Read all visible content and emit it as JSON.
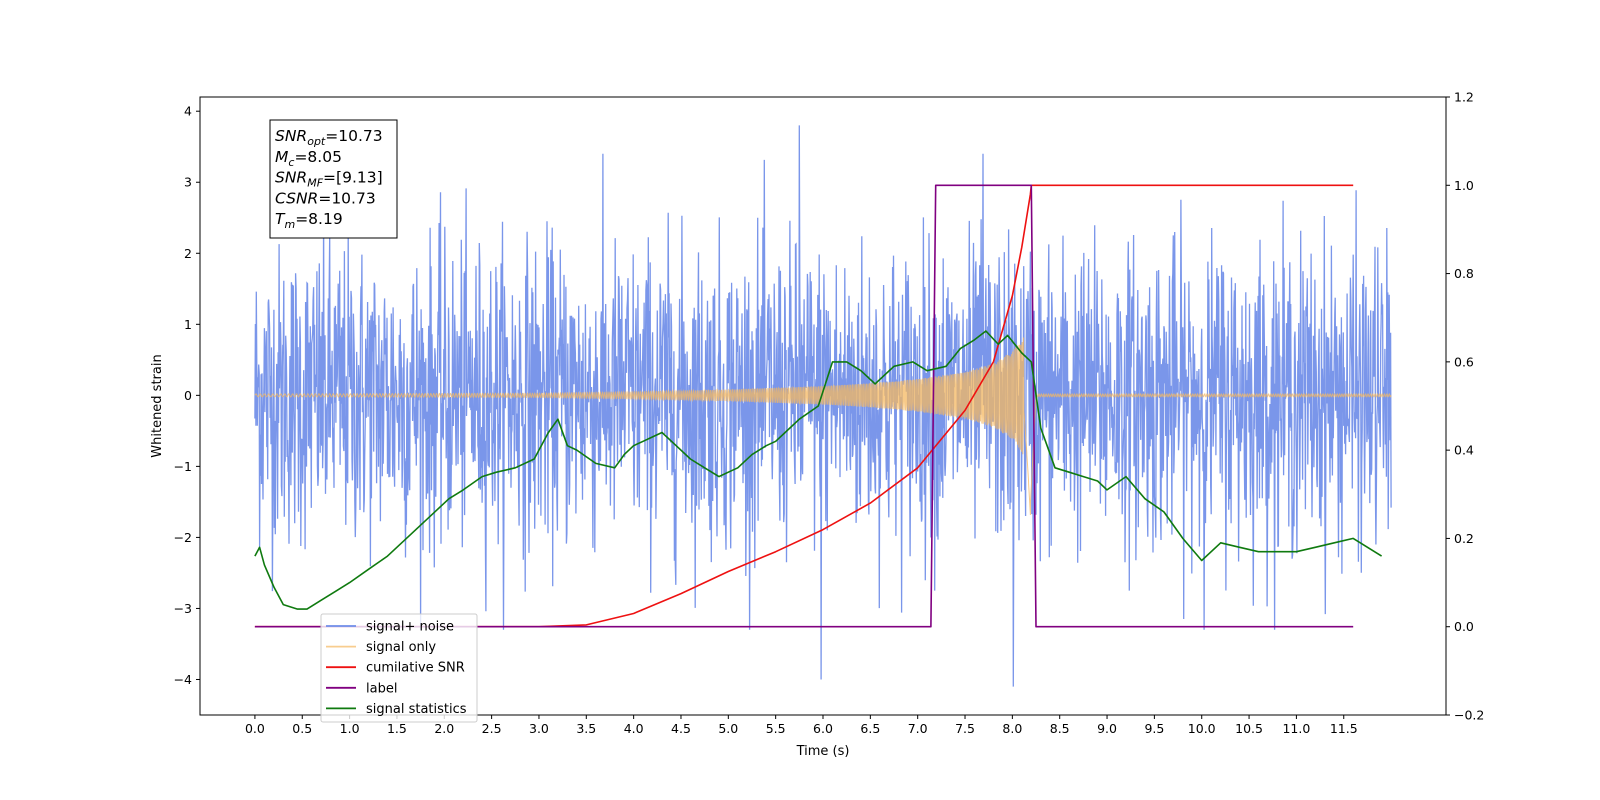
{
  "chart_data": {
    "type": "line",
    "xlabel": "Time (s)",
    "ylabel": "Whitened strain",
    "xlim": [
      -0.58,
      12.58
    ],
    "ylim": [
      -4.5,
      4.2
    ],
    "y2lim": [
      -0.2,
      1.2
    ],
    "xticks": [
      "0.0",
      "0.5",
      "1.0",
      "1.5",
      "2.0",
      "2.5",
      "3.0",
      "3.5",
      "4.0",
      "4.5",
      "5.0",
      "5.5",
      "6.0",
      "6.5",
      "7.0",
      "7.5",
      "8.0",
      "8.5",
      "9.0",
      "9.5",
      "10.0",
      "10.5",
      "11.0",
      "11.5"
    ],
    "yticks": [
      "4",
      "3",
      "2",
      "1",
      "0",
      "−1",
      "−2",
      "−3",
      "−4"
    ],
    "y2ticks": [
      "1.2",
      "1.0",
      "0.8",
      "0.6",
      "0.4",
      "0.2",
      "0.0",
      "−0.2"
    ],
    "grid": false,
    "legend_position": "lower-left",
    "annotation": {
      "lines": [
        {
          "sym": "SNR",
          "sub": "opt",
          "val": "=10.73"
        },
        {
          "sym": "M",
          "sub": "c",
          "val": "=8.05"
        },
        {
          "sym": "SNR",
          "sub": "MF",
          "val": "=[9.13]"
        },
        {
          "sym": "CSNR",
          "sub": "",
          "val": "=10.73"
        },
        {
          "sym": "T",
          "sub": "m",
          "val": "=8.19"
        }
      ]
    },
    "series": [
      {
        "name": "signal+ noise",
        "axis": "left",
        "color": "#6f8de8",
        "style": "noise envelope ±1 std approx, range -4.1 to 3.8",
        "x": [
          0.0,
          5.75,
          5.98,
          7.69,
          8.01,
          12.0
        ],
        "y": [
          0.0,
          3.8,
          -4.0,
          3.4,
          -4.1,
          0.0
        ]
      },
      {
        "name": "signal only",
        "axis": "left",
        "color": "#f5b860",
        "x": [
          0.0,
          3.0,
          4.0,
          5.0,
          6.0,
          6.5,
          7.0,
          7.5,
          7.8,
          8.0,
          8.1,
          8.19,
          8.25,
          12.0
        ],
        "y": [
          0.02,
          0.03,
          0.05,
          0.08,
          0.13,
          0.17,
          0.23,
          0.33,
          0.45,
          0.62,
          0.8,
          1.1,
          0.02,
          0.02
        ]
      },
      {
        "name": "cumilative SNR",
        "axis": "right",
        "color": "#ee1111",
        "x": [
          0.0,
          3.0,
          3.5,
          4.0,
          4.5,
          5.0,
          5.5,
          6.0,
          6.5,
          7.0,
          7.5,
          7.8,
          8.0,
          8.1,
          8.19,
          8.2,
          11.6
        ],
        "y": [
          0.0,
          0.0,
          0.004,
          0.03,
          0.075,
          0.125,
          0.17,
          0.22,
          0.28,
          0.36,
          0.49,
          0.6,
          0.75,
          0.86,
          0.98,
          1.0,
          1.0
        ]
      },
      {
        "name": "label",
        "axis": "right",
        "color": "#800080",
        "x": [
          0.0,
          7.14,
          7.19,
          8.2,
          8.25,
          11.6
        ],
        "y": [
          0.0,
          0.0,
          1.0,
          1.0,
          0.0,
          0.0
        ]
      },
      {
        "name": "signal statistics",
        "axis": "right",
        "color": "#0f7a0f",
        "x": [
          0.0,
          0.05,
          0.1,
          0.2,
          0.3,
          0.45,
          0.55,
          0.7,
          0.85,
          1.0,
          1.2,
          1.4,
          1.6,
          1.75,
          1.9,
          2.05,
          2.2,
          2.4,
          2.55,
          2.75,
          2.95,
          3.1,
          3.2,
          3.3,
          3.4,
          3.6,
          3.8,
          3.9,
          4.0,
          4.1,
          4.2,
          4.3,
          4.45,
          4.6,
          4.75,
          4.9,
          5.0,
          5.1,
          5.25,
          5.4,
          5.5,
          5.6,
          5.75,
          5.95,
          6.1,
          6.25,
          6.4,
          6.55,
          6.75,
          6.95,
          7.1,
          7.3,
          7.45,
          7.6,
          7.72,
          7.85,
          7.95,
          8.1,
          8.2,
          8.3,
          8.45,
          8.6,
          8.75,
          8.9,
          9.0,
          9.2,
          9.4,
          9.6,
          9.8,
          10.0,
          10.2,
          10.4,
          10.6,
          10.8,
          11.0,
          11.2,
          11.4,
          11.6,
          11.9
        ],
        "y": [
          0.16,
          0.18,
          0.14,
          0.09,
          0.05,
          0.04,
          0.04,
          0.06,
          0.08,
          0.1,
          0.13,
          0.16,
          0.2,
          0.23,
          0.26,
          0.29,
          0.31,
          0.34,
          0.35,
          0.36,
          0.38,
          0.44,
          0.47,
          0.41,
          0.4,
          0.37,
          0.36,
          0.39,
          0.41,
          0.42,
          0.43,
          0.44,
          0.41,
          0.38,
          0.36,
          0.34,
          0.35,
          0.36,
          0.39,
          0.41,
          0.42,
          0.44,
          0.47,
          0.5,
          0.6,
          0.6,
          0.58,
          0.55,
          0.59,
          0.6,
          0.58,
          0.59,
          0.63,
          0.65,
          0.67,
          0.64,
          0.66,
          0.62,
          0.6,
          0.45,
          0.36,
          0.35,
          0.34,
          0.33,
          0.31,
          0.34,
          0.29,
          0.26,
          0.2,
          0.15,
          0.19,
          0.18,
          0.17,
          0.17,
          0.17,
          0.18,
          0.19,
          0.2,
          0.16
        ]
      }
    ]
  }
}
